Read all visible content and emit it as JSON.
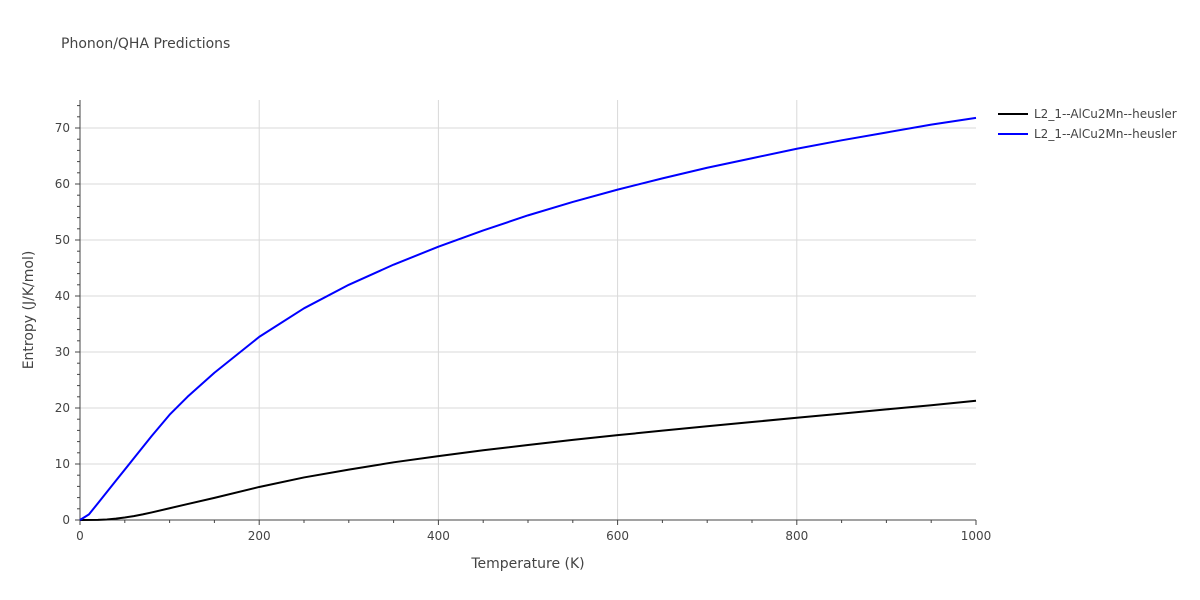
{
  "chart_data": {
    "type": "line",
    "title": "Phonon/QHA Predictions",
    "xlabel": "Temperature (K)",
    "ylabel": "Entropy (J/K/mol)",
    "xlim": [
      0,
      1000
    ],
    "ylim": [
      0,
      75
    ],
    "x_ticks": [
      0,
      200,
      400,
      600,
      800,
      1000
    ],
    "y_ticks": [
      0,
      10,
      20,
      30,
      40,
      50,
      60,
      70
    ],
    "grid": true,
    "legend_position": "top-right",
    "series": [
      {
        "name": "L2_1--AlCu2Mn--heusler",
        "color": "#000000",
        "x": [
          0,
          20,
          30,
          40,
          50,
          60,
          70,
          80,
          100,
          120,
          150,
          200,
          250,
          300,
          350,
          400,
          450,
          500,
          550,
          600,
          650,
          700,
          750,
          800,
          850,
          900,
          950,
          1000
        ],
        "y": [
          0,
          0.02,
          0.1,
          0.25,
          0.45,
          0.7,
          1.0,
          1.35,
          2.1,
          2.85,
          3.95,
          5.9,
          7.6,
          9.0,
          10.3,
          11.4,
          12.45,
          13.4,
          14.3,
          15.15,
          15.95,
          16.75,
          17.5,
          18.25,
          19.0,
          19.75,
          20.5,
          21.3
        ]
      },
      {
        "name": "L2_1--AlCu2Mn--heusler",
        "color": "#0000ff",
        "x": [
          0,
          10,
          20,
          40,
          60,
          80,
          100,
          120,
          150,
          200,
          250,
          300,
          350,
          400,
          450,
          500,
          550,
          600,
          650,
          700,
          750,
          800,
          850,
          900,
          950,
          1000
        ],
        "y": [
          0,
          1.0,
          3.0,
          7.0,
          11.0,
          15.0,
          18.8,
          22.0,
          26.3,
          32.7,
          37.8,
          42.0,
          45.6,
          48.8,
          51.7,
          54.4,
          56.8,
          59.0,
          61.0,
          62.9,
          64.6,
          66.3,
          67.8,
          69.2,
          70.6,
          71.8
        ]
      }
    ]
  }
}
